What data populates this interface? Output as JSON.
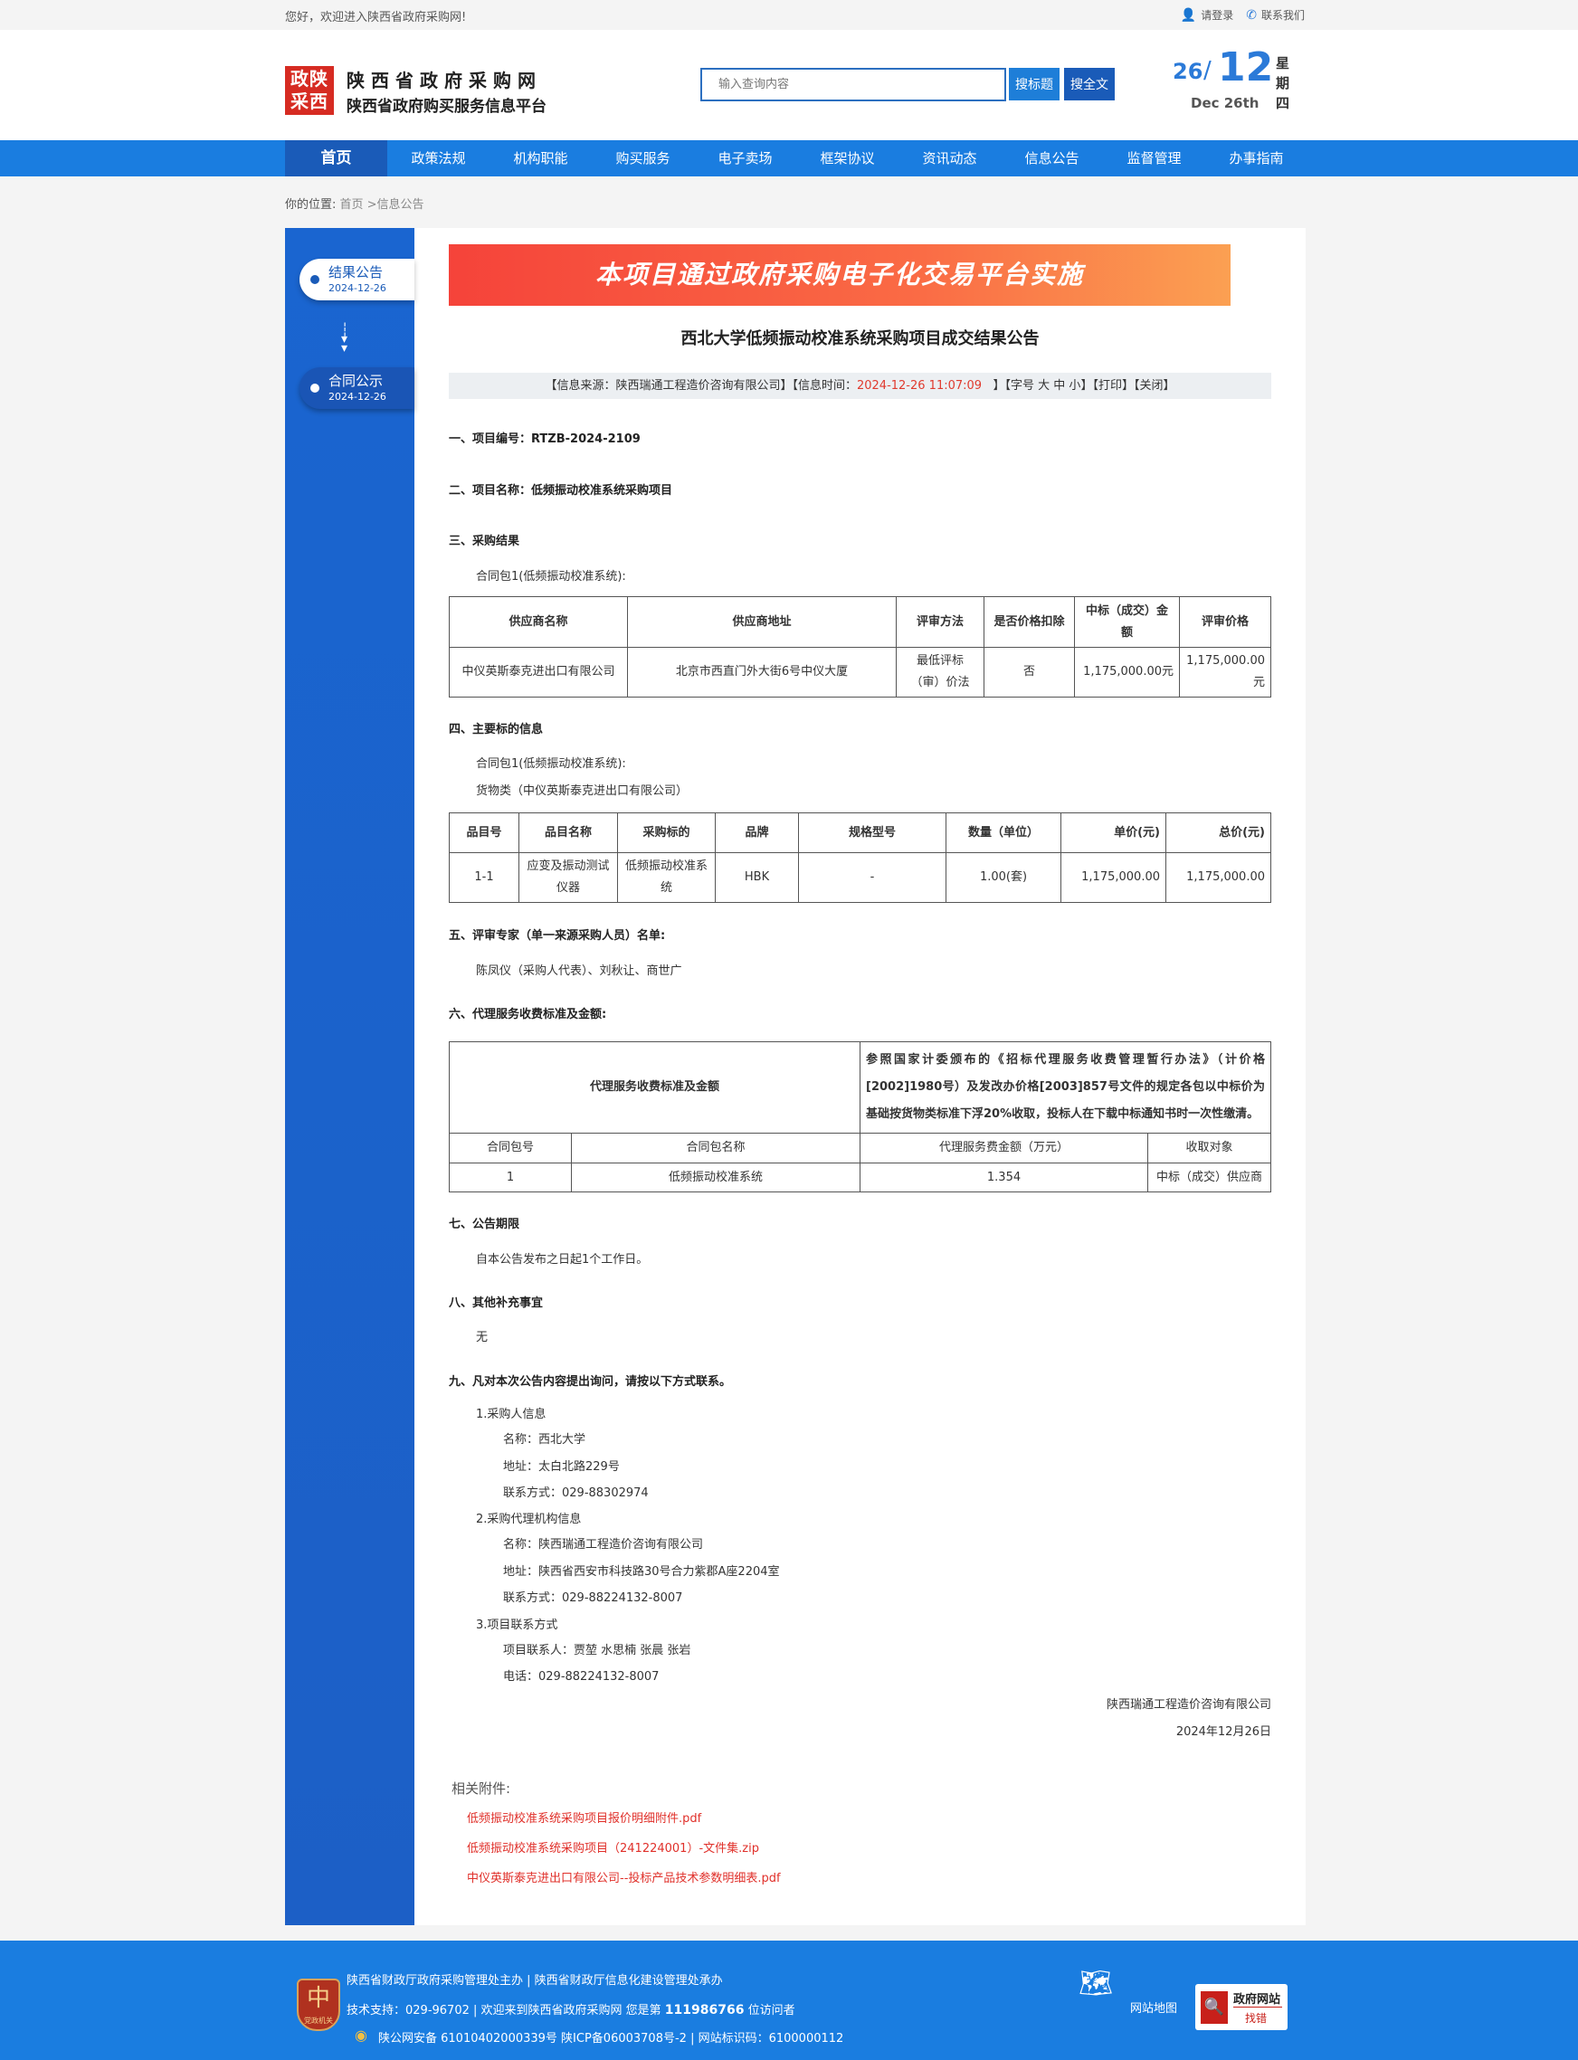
{
  "topbar": {
    "greeting": "您好，欢迎进入陕西省政府采购网!",
    "login": "请登录",
    "contact": "联系我们"
  },
  "header": {
    "logo_text": "政陕采西",
    "site_name": "陕西省政府采购网",
    "site_subtitle": "陕西省政府购买服务信息平台",
    "search_placeholder": "输入查询内容",
    "search_title_btn": "搜标题",
    "search_full_btn": "搜全文",
    "date": {
      "day": "26",
      "slash": "/",
      "month": "12",
      "en": "Dec 26th",
      "weekday": "星期四"
    }
  },
  "nav": [
    "首页",
    "政策法规",
    "机构职能",
    "购买服务",
    "电子卖场",
    "框架协议",
    "资讯动态",
    "信息公告",
    "监督管理",
    "办事指南"
  ],
  "breadcrumb": {
    "label": "你的位置:",
    "path": "首页 >信息公告"
  },
  "sidebar": [
    {
      "title": "结果公告",
      "date": "2024-12-26",
      "active": true
    },
    {
      "title": "合同公示",
      "date": "2024-12-26",
      "active": false
    }
  ],
  "article": {
    "banner": "本项目通过政府采购电子化交易平台实施",
    "title": "西北大学低频振动校准系统采购项目成交结果公告",
    "info": {
      "source": "【信息来源：陕西瑞通工程造价咨询有限公司】【信息时间：",
      "time": "2024-12-26 11:07:09",
      "tail1": "】【字号 ",
      "large": "大",
      "mid": "中",
      "small": "小",
      "tail2": "】【",
      "print": "打印",
      "mid2": "】【",
      "close": "关闭",
      "end": "】"
    },
    "s1": "一、项目编号：RTZB-2024-2109",
    "s2": "二、项目名称：低频振动校准系统采购项目",
    "s3": "三、采购结果",
    "s3_pkg": "合同包1(低频振动校准系统):",
    "t1_head": [
      "供应商名称",
      "供应商地址",
      "评审方法",
      "是否价格扣除",
      "中标（成交）金额",
      "评审价格"
    ],
    "t1_row": [
      "中仪英斯泰克进出口有限公司",
      "北京市西直门外大街6号中仪大厦",
      "最低评标（审）价法",
      "否",
      "1,175,000.00元",
      "1,175,000.00元"
    ],
    "s4": "四、主要标的信息",
    "s4_pkg": "合同包1(低频振动校准系统):",
    "s4_cat": "货物类（中仪英斯泰克进出口有限公司）",
    "t2_head": [
      "品目号",
      "品目名称",
      "采购标的",
      "品牌",
      "规格型号",
      "数量（单位）",
      "单价(元)",
      "总价(元)"
    ],
    "t2_row": [
      "1-1",
      "应变及振动测试仪器",
      "低频振动校准系统",
      "HBK",
      "-",
      "1.00(套)",
      "1,175,000.00",
      "1,175,000.00"
    ],
    "s5": "五、评审专家（单一来源采购人员）名单:",
    "s5_names": "陈凤仪（采购人代表）、刘秋让、商世广",
    "s6": "六、代理服务收费标准及金额:",
    "t3_label": "代理服务收费标准及金额",
    "t3_desc": "参照国家计委颁布的《招标代理服务收费管理暂行办法》（计价格[2002]1980号）及发改办价格[2003]857号文件的规定各包以中标价为基础按货物类标准下浮20%收取，投标人在下载中标通知书时一次性缴清。",
    "t3_head": [
      "合同包号",
      "合同包名称",
      "代理服务费金额（万元）",
      "收取对象"
    ],
    "t3_row": [
      "1",
      "低频振动校准系统",
      "1.354",
      "中标（成交）供应商"
    ],
    "s7": "七、公告期限",
    "s7_text": "自本公告发布之日起1个工作日。",
    "s8": "八、其他补充事宜",
    "s8_text": "无",
    "s9": "九、凡对本次公告内容提出询问，请按以下方式联系。",
    "s9_items": [
      "1.采购人信息",
      "名称：西北大学",
      "地址：太白北路229号",
      "联系方式：029-88302974",
      "2.采购代理机构信息",
      "名称：陕西瑞通工程造价咨询有限公司",
      "地址：陕西省西安市科技路30号合力紫郡A座2204室",
      "联系方式：029-88224132-8007",
      "3.项目联系方式",
      "项目联系人：贾堃 水思楠 张晨 张岩",
      "电话：029-88224132-8007"
    ],
    "signer": "陕西瑞通工程造价咨询有限公司",
    "sign_date": "2024年12月26日",
    "attachments_label": "相关附件:",
    "attachments": [
      "低频振动校准系统采购项目报价明细附件.pdf",
      "低频振动校准系统采购项目（241224001）-文件集.zip",
      "中仪英斯泰克进出口有限公司--投标产品技术参数明细表.pdf"
    ]
  },
  "footer": {
    "line1": "陕西省财政厅政府采购管理处主办 | 陕西省财政厅信息化建设管理处承办",
    "line2a": "技术支持：029-96702 | 欢迎来到陕西省政府采购网 您是第 ",
    "visitors": "111986766",
    "line2b": " 位访问者",
    "line3": "陕公网安备 61010402000339号    陕ICP备06003708号-2   |   网站标识码：6100000112",
    "badge": "党政机关",
    "sitemap": "网站地图",
    "findError": {
      "top": "政府网站",
      "bottom": "找错"
    }
  },
  "colors": {
    "primary": "#1a7de0",
    "nav_active": "#1a5bb8",
    "red": "#e0302a"
  }
}
